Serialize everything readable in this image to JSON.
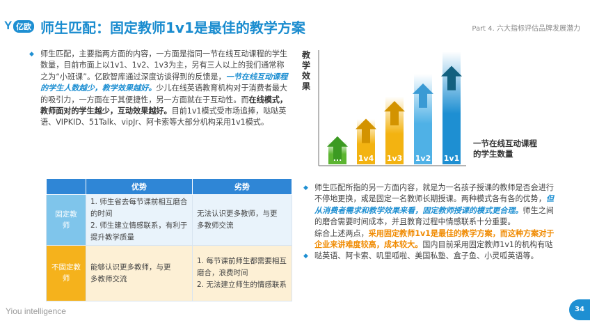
{
  "header": {
    "logo_mark": "Y",
    "logo_text": "亿欧",
    "title": "师生匹配：固定教师1v1是最佳的教学方案",
    "part": "Part 4. 六大指标评估品牌发展潜力"
  },
  "left_text": {
    "p1": "师生匹配，主要指两方面的内容，一方面是指同一节在线互动课程的学生数量，目前市面上以1v1、1v2、1v3为主，另有三人以上的我们通常称之为“小班课”。亿欧智库通过深度访谈得到的反馈是，",
    "p1_hl": "一节在线互动课程的学生人数越少，教学效果越好。",
    "p2": "少儿在线英语教育机构对于消费者最大的吸引力，一方面在于其便捷性，另一方面就在于互动性。而",
    "p2_bold": "在线模式，教师面对的学生越少，互动效果越好。",
    "p3": "目前1v1模式受市场追捧，哒哒英语、VIPKID、51Talk、vipJr、阿卡索等大部分机构采用1v1模式。"
  },
  "chart_data": {
    "type": "bar",
    "ylabel": "教学效果",
    "xlabel": "一节在线互动课程的学生数量",
    "categories": [
      "...",
      "1v4",
      "1v3",
      "1v2",
      "1v1"
    ],
    "values": [
      1,
      2,
      3,
      4,
      5
    ],
    "colors": [
      "#5cb531",
      "#f3b311",
      "#f3b311",
      "#4fb1e6",
      "#1e8fd2"
    ],
    "arrow_colors": [
      "#3c9a22",
      "#d39300",
      "#d39300",
      "#3a9ad4",
      "#12607f"
    ]
  },
  "table": {
    "headers": [
      "",
      "优势",
      "劣势"
    ],
    "rows": [
      {
        "label": "固定教师",
        "pros": "1. 师生省去每节课前相互磨合的时间\n2. 师生建立情感联系，有利于提升教学质量",
        "cons": "无法认识更多教师，与更多教师交流"
      },
      {
        "label": "不固定教师",
        "pros": "能够认识更多教师，与更多教师交流",
        "cons": "1. 每节课前师生都需要相互磨合，浪费时间\n2. 无法建立师生的情感联系"
      }
    ]
  },
  "right_text": {
    "b1": "师生匹配所指的另一方面内容，就是为一名孩子授课的教师是否会进行不停地更换，或是固定一名教师长期授课。两种模式各有各的优势，",
    "b1_hl": "但从消费者需求和教学效果来看，固定教师授课的模式更合理。",
    "b1_tail": "师生之间的磨合需要时间成本，并且教育过程中情感联系十分重要。",
    "b2": "综合上述两点，",
    "b2_hl": "采用固定教师1v1是最佳的教学方案，而这种方案对于企业来讲难度较高，成本较大。",
    "b2_tail": "国内目前采用固定教师1v1的机构有哒哒英语、阿卡索、叽里呱啦、美国私塾、盒子鱼、小灵呱英语等。"
  },
  "footer": {
    "brand": "Yiou intelligence",
    "page": "34"
  }
}
